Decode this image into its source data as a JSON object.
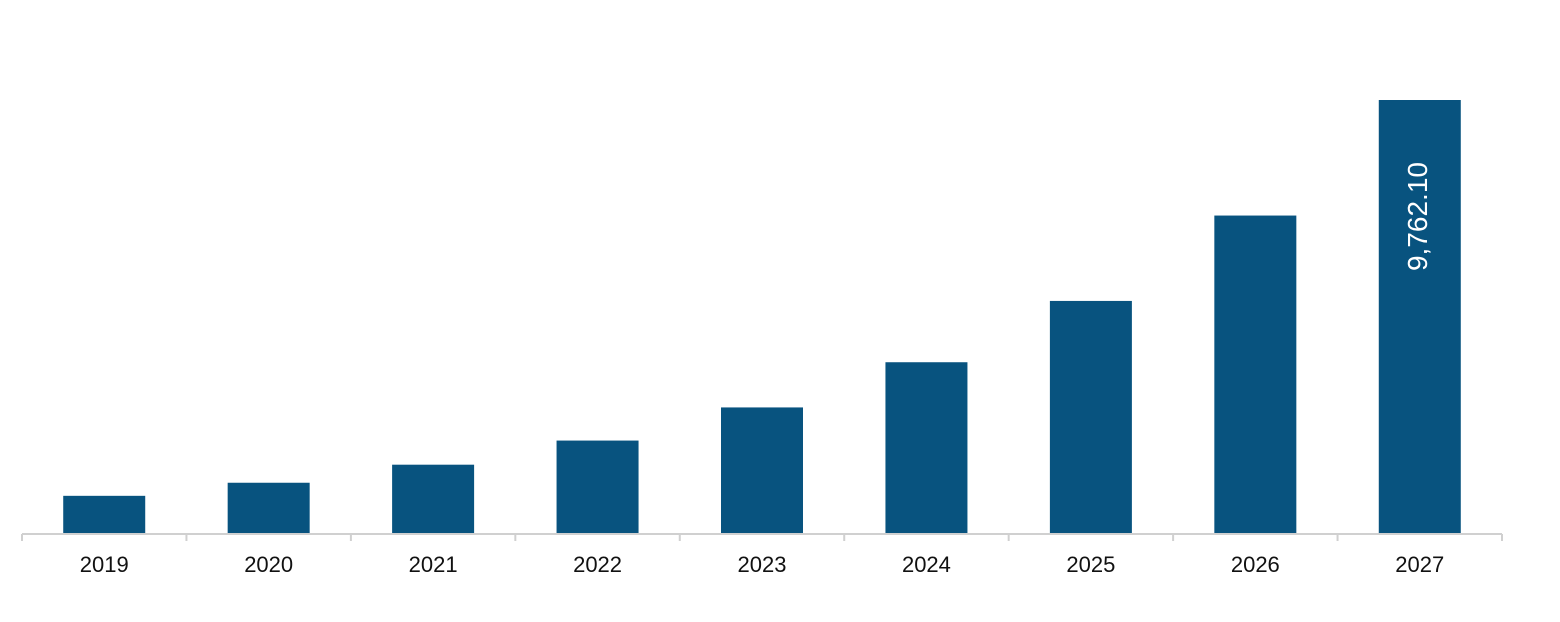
{
  "chart_data": {
    "type": "bar",
    "categories": [
      "2019",
      "2020",
      "2021",
      "2022",
      "2023",
      "2024",
      "2025",
      "2026",
      "2027"
    ],
    "values": [
      838,
      1133,
      1540,
      2084,
      2831,
      3850,
      5232,
      7157,
      9762.1
    ],
    "value_labels": [
      null,
      null,
      null,
      null,
      null,
      null,
      null,
      null,
      "9,762.10"
    ],
    "color": "#08537f"
  }
}
